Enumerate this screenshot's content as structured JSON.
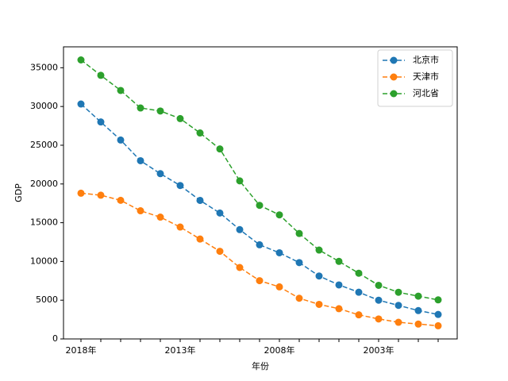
{
  "chart_data": {
    "type": "line",
    "xlabel": "年份",
    "ylabel": "GDP",
    "categories": [
      "2018年",
      null,
      null,
      null,
      null,
      "2013年",
      null,
      null,
      null,
      null,
      "2008年",
      null,
      null,
      null,
      null,
      "2003年",
      null,
      null,
      null
    ],
    "series": [
      {
        "name": "北京市",
        "color": "#1f77b4",
        "values": [
          30320,
          28000,
          25670,
          23000,
          21330,
          19800,
          17880,
          16250,
          14110,
          12150,
          11120,
          9850,
          8120,
          6970,
          6030,
          5000,
          4330,
          3660,
          3160
        ]
      },
      {
        "name": "天津市",
        "color": "#ff7f0e",
        "values": [
          18810,
          18550,
          17890,
          16540,
          15720,
          14440,
          12890,
          11310,
          9220,
          7520,
          6720,
          5250,
          4460,
          3900,
          3110,
          2580,
          2150,
          1920,
          1700
        ]
      },
      {
        "name": "河北省",
        "color": "#2ca02c",
        "values": [
          36010,
          34020,
          32070,
          29810,
          29420,
          28440,
          26580,
          24520,
          20400,
          17240,
          16010,
          13610,
          11470,
          10010,
          8480,
          6920,
          6020,
          5520,
          5040
        ]
      }
    ],
    "ylim": [
      0,
      37700
    ],
    "yticks": [
      0,
      5000,
      10000,
      15000,
      20000,
      25000,
      30000,
      35000
    ],
    "line_style": "dashed",
    "marker": "circle",
    "legend": "upper right",
    "grid": false
  }
}
